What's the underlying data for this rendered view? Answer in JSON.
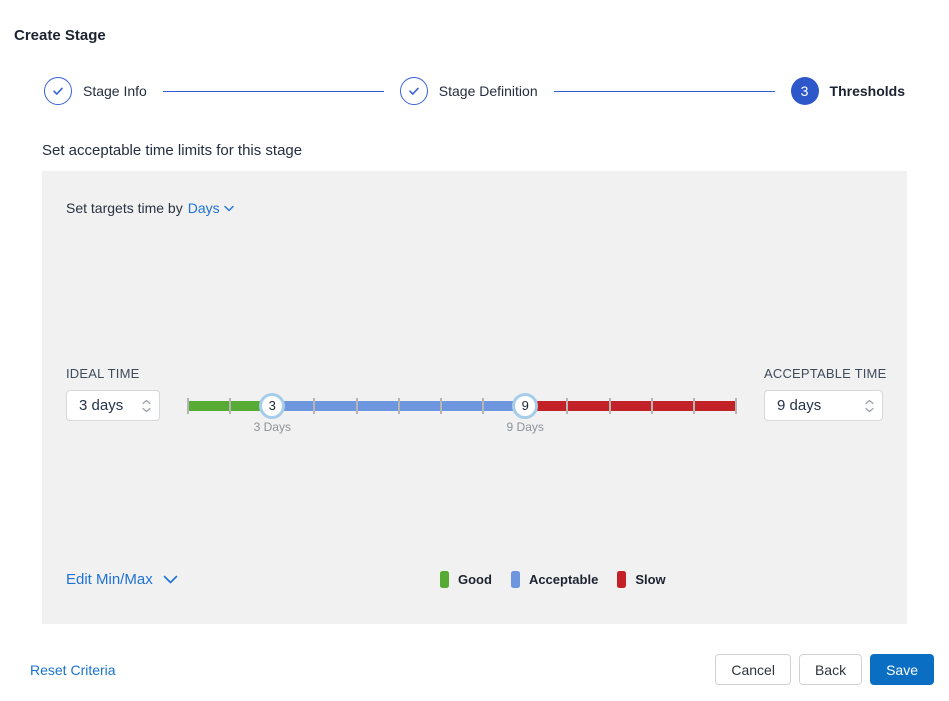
{
  "page_title": "Create Stage",
  "stepper": {
    "steps": [
      {
        "label": "Stage Info",
        "state": "complete"
      },
      {
        "label": "Stage Definition",
        "state": "complete"
      },
      {
        "label": "Thresholds",
        "state": "active",
        "number": "3"
      }
    ]
  },
  "section_heading": "Set acceptable time limits for this stage",
  "panel": {
    "target_prefix": "Set targets time by",
    "target_unit": "Days",
    "ideal": {
      "label": "IDEAL TIME",
      "value": "3 days"
    },
    "acceptable": {
      "label": "ACCEPTABLE TIME",
      "value": "9 days"
    },
    "slider": {
      "min_day": 1,
      "max_day": 14,
      "ideal_day": 3,
      "acceptable_day": 9,
      "ideal_handle_text": "3",
      "acceptable_handle_text": "9",
      "ideal_tick_label": "3 Days",
      "acceptable_tick_label": "9 Days",
      "colors": {
        "good": "#55ab34",
        "acceptable": "#6e96de",
        "slow": "#c22127"
      }
    },
    "edit_minmax_label": "Edit Min/Max",
    "legend": [
      {
        "label": "Good",
        "color": "#55ab34"
      },
      {
        "label": "Acceptable",
        "color": "#6e96de"
      },
      {
        "label": "Slow",
        "color": "#c22127"
      }
    ]
  },
  "footer": {
    "reset_label": "Reset Criteria",
    "cancel_label": "Cancel",
    "back_label": "Back",
    "save_label": "Save"
  },
  "colors": {
    "accent_blue": "#2e57c9",
    "link_blue": "#1f72d6",
    "save_blue": "#0a6fc2",
    "panel_bg": "#f1f1f1"
  }
}
